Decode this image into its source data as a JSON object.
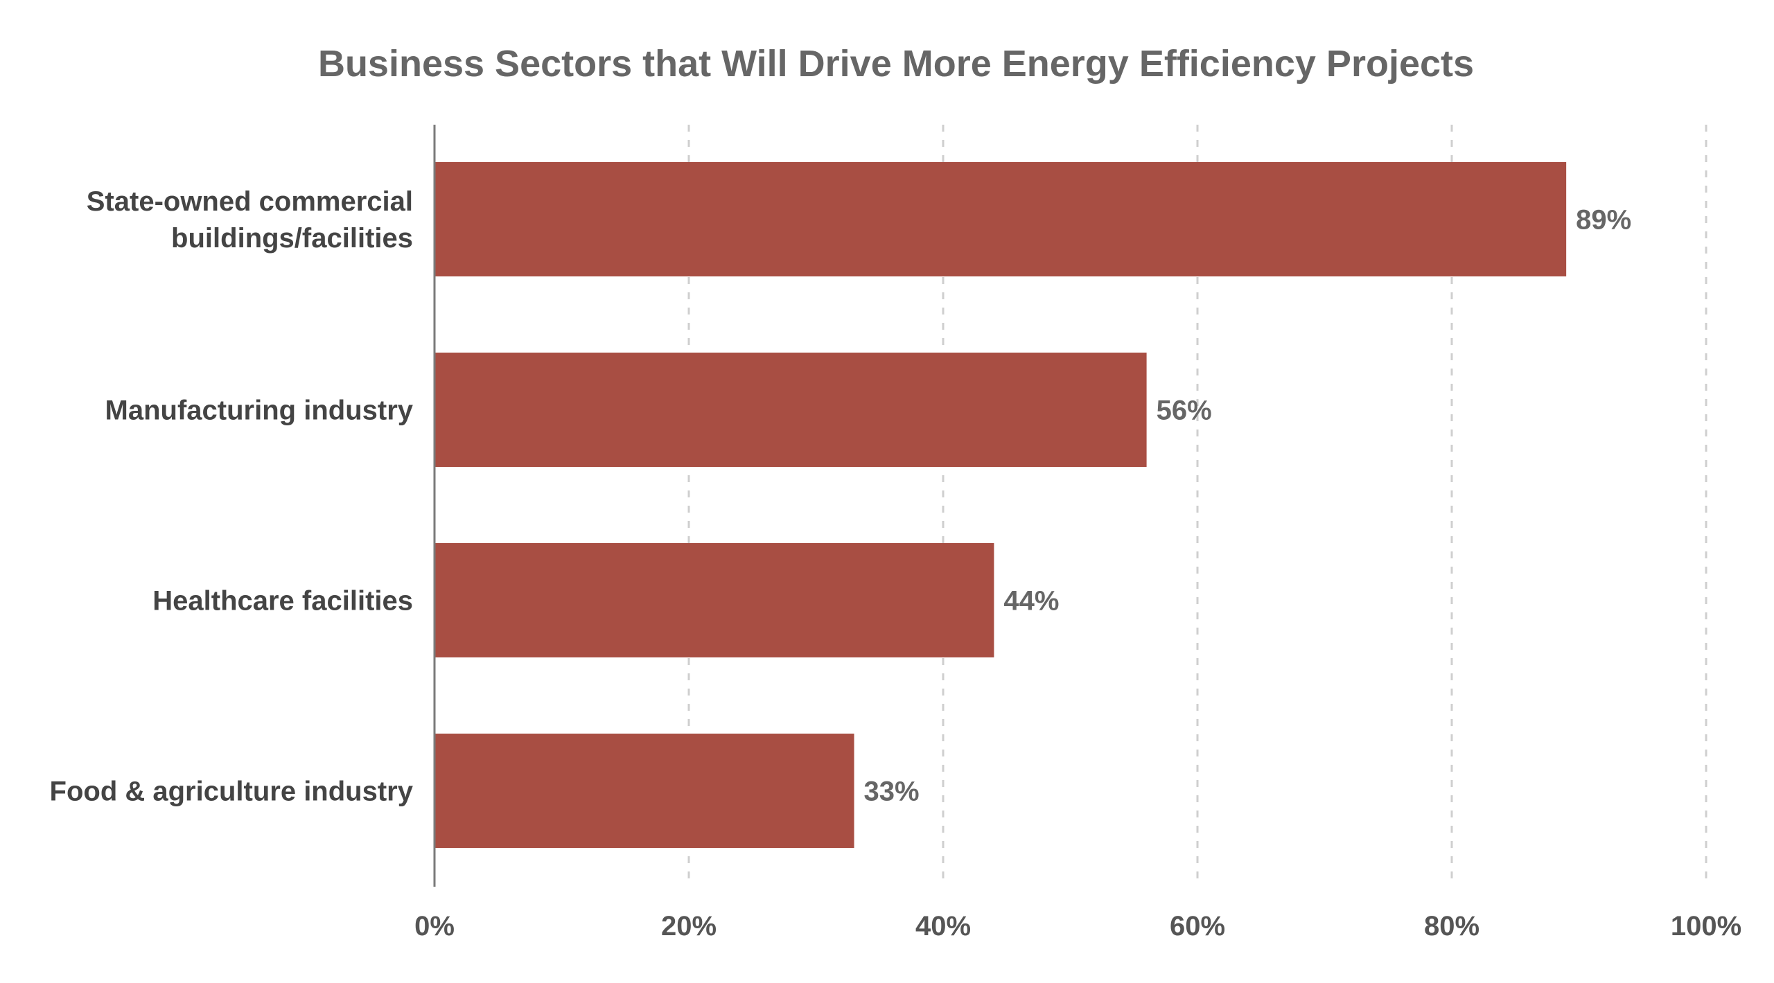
{
  "chart_data": {
    "type": "bar",
    "orientation": "horizontal",
    "title": "Business Sectors that Will Drive More Energy Efficiency Projects",
    "categories": [
      [
        "State-owned commercial",
        "buildings/facilities"
      ],
      [
        "Manufacturing industry"
      ],
      [
        "Healthcare facilities"
      ],
      [
        "Food & agriculture industry"
      ]
    ],
    "values": [
      89,
      56,
      44,
      33
    ],
    "value_labels": [
      "89%",
      "56%",
      "44%",
      "33%"
    ],
    "xlim": [
      0,
      100
    ],
    "x_ticks": [
      0,
      20,
      40,
      60,
      80,
      100
    ],
    "x_tick_labels": [
      "0%",
      "20%",
      "40%",
      "60%",
      "80%",
      "100%"
    ],
    "xlabel": "",
    "ylabel": "",
    "grid": "vertical dashed",
    "legend": "none",
    "colors": {
      "bar": "#a84e43",
      "title": "#666666",
      "category_text": "#444444",
      "value_text": "#666666",
      "grid": "#cfcfcf",
      "axis": "#7a7a7a"
    }
  }
}
